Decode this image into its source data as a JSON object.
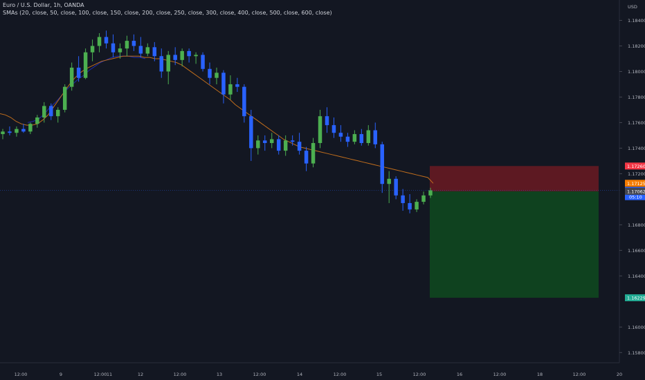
{
  "header": {
    "title": "Euro / U.S. Dollar, 1h, OANDA",
    "indicator": "SMAs (20, close, 50, close, 100, close, 150, close, 200, close, 250, close, 300, close, 400, close, 500, close, 600, close)",
    "currency": "USD"
  },
  "colors": {
    "background": "#131722",
    "up_candle": "#4caf50",
    "down_candle": "#2962ff",
    "sma_fast": "#1e2ba8",
    "sma_slow": "#c26e1c",
    "stop_zone": "#6b1a22",
    "target_zone": "#0f4a1f",
    "stop_badge": "#f23645",
    "sma_badge": "#f57c00",
    "price_badge": "#2962ff",
    "entry_badge": "#434651",
    "target_badge": "#22ab94"
  },
  "y_axis": {
    "ticks": [
      "1.18400",
      "1.18200",
      "1.18000",
      "1.17800",
      "1.17600",
      "1.17400",
      "1.17200",
      "1.16800",
      "1.16600",
      "1.16400",
      "1.16000",
      "1.15800"
    ],
    "badges": {
      "stop": "1.17260",
      "sma": "1.17125",
      "price": "1.17069",
      "countdown": "05:10",
      "entry": "1.17062",
      "target": "1.16229"
    }
  },
  "x_axis": {
    "ticks": [
      "12:00",
      "9",
      "12:00",
      "11",
      "12",
      "12:00",
      "13",
      "12:00",
      "14",
      "12:00",
      "15",
      "12:00",
      "16",
      "12:00",
      "18",
      "12:00",
      "20"
    ]
  },
  "chart_data": {
    "type": "candlestick",
    "ylim": [
      1.1578,
      1.185
    ],
    "position": {
      "type": "short",
      "stop": 1.1726,
      "entry": 1.17062,
      "target": 1.16229
    },
    "sma_fast_approx": [
      1.176,
      1.1761,
      1.1763,
      1.1767,
      1.1772,
      1.1776,
      1.1781,
      1.1786,
      1.179,
      1.1794,
      1.1797,
      1.1801,
      1.1804,
      1.1807,
      1.1809,
      1.1811,
      1.1812,
      1.1812,
      1.1812,
      1.1811,
      1.1811,
      1.181
    ],
    "sma_slow_approx": [
      1.1767,
      1.1766,
      1.1764,
      1.1761,
      1.1759,
      1.1758,
      1.1758,
      1.1759,
      1.1762,
      1.1766,
      1.1772,
      1.1778,
      1.1784,
      1.179,
      1.1795,
      1.1799,
      1.1802,
      1.1804,
      1.1806,
      1.1808,
      1.1809,
      1.181,
      1.1811,
      1.1812,
      1.1812,
      1.1812,
      1.1812,
      1.1811,
      1.1811,
      1.181,
      1.181,
      1.1809,
      1.1808,
      1.1807,
      1.1805,
      1.1802,
      1.1799,
      1.1796,
      1.1793,
      1.179,
      1.1787,
      1.1784,
      1.1781,
      1.1778,
      1.1774,
      1.1771,
      1.1768,
      1.1765,
      1.1762,
      1.1759,
      1.1756,
      1.1753,
      1.175,
      1.1747,
      1.1745,
      1.1743,
      1.1741,
      1.174,
      1.1739,
      1.1738,
      1.1737,
      1.1736,
      1.1735,
      1.1734,
      1.1733,
      1.1732,
      1.1731,
      1.173,
      1.1729,
      1.1728,
      1.1727,
      1.1726,
      1.1725,
      1.1724,
      1.1723,
      1.1722,
      1.1721,
      1.172,
      1.1719,
      1.1718,
      1.1717,
      1.17125
    ],
    "candles": [
      [
        1.1751,
        1.1755,
        1.1747,
        1.1753
      ],
      [
        1.1753,
        1.1757,
        1.175,
        1.1752
      ],
      [
        1.1752,
        1.1757,
        1.1749,
        1.1755
      ],
      [
        1.1755,
        1.1759,
        1.1752,
        1.1753
      ],
      [
        1.1753,
        1.176,
        1.1751,
        1.1759
      ],
      [
        1.1759,
        1.1766,
        1.1756,
        1.1764
      ],
      [
        1.1764,
        1.1776,
        1.176,
        1.1773
      ],
      [
        1.1773,
        1.1775,
        1.1762,
        1.1765
      ],
      [
        1.1765,
        1.1772,
        1.176,
        1.177
      ],
      [
        1.177,
        1.179,
        1.1768,
        1.1788
      ],
      [
        1.1788,
        1.1807,
        1.1785,
        1.1803
      ],
      [
        1.1803,
        1.1812,
        1.1792,
        1.1795
      ],
      [
        1.1795,
        1.1818,
        1.1794,
        1.1815
      ],
      [
        1.1815,
        1.1825,
        1.1808,
        1.182
      ],
      [
        1.182,
        1.183,
        1.1815,
        1.1827
      ],
      [
        1.1827,
        1.1832,
        1.1818,
        1.1822
      ],
      [
        1.1822,
        1.1829,
        1.1811,
        1.1815
      ],
      [
        1.1815,
        1.1822,
        1.181,
        1.1818
      ],
      [
        1.1818,
        1.1828,
        1.1812,
        1.1824
      ],
      [
        1.1824,
        1.1829,
        1.1816,
        1.182
      ],
      [
        1.182,
        1.1827,
        1.1811,
        1.1814
      ],
      [
        1.1814,
        1.1822,
        1.1812,
        1.1819
      ],
      [
        1.1819,
        1.1823,
        1.1808,
        1.1812
      ],
      [
        1.1812,
        1.1818,
        1.1795,
        1.18
      ],
      [
        1.18,
        1.1816,
        1.179,
        1.1813
      ],
      [
        1.1813,
        1.1819,
        1.1805,
        1.1809
      ],
      [
        1.1809,
        1.1818,
        1.1804,
        1.1816
      ],
      [
        1.1816,
        1.1818,
        1.1807,
        1.1812
      ],
      [
        1.1812,
        1.1815,
        1.1806,
        1.1813
      ],
      [
        1.1813,
        1.1815,
        1.18,
        1.1802
      ],
      [
        1.1802,
        1.1807,
        1.179,
        1.1795
      ],
      [
        1.1795,
        1.1803,
        1.179,
        1.1799
      ],
      [
        1.1799,
        1.1801,
        1.1775,
        1.1782
      ],
      [
        1.1782,
        1.1797,
        1.1778,
        1.179
      ],
      [
        1.179,
        1.1795,
        1.1784,
        1.1788
      ],
      [
        1.1788,
        1.179,
        1.176,
        1.1765
      ],
      [
        1.1765,
        1.177,
        1.173,
        1.174
      ],
      [
        1.174,
        1.175,
        1.1735,
        1.1746
      ],
      [
        1.1746,
        1.175,
        1.1738,
        1.1744
      ],
      [
        1.1744,
        1.1752,
        1.174,
        1.1747
      ],
      [
        1.1747,
        1.175,
        1.1735,
        1.1738
      ],
      [
        1.1738,
        1.175,
        1.1734,
        1.1746
      ],
      [
        1.1746,
        1.175,
        1.1742,
        1.1745
      ],
      [
        1.1745,
        1.1752,
        1.1735,
        1.1738
      ],
      [
        1.1738,
        1.1741,
        1.1722,
        1.1728
      ],
      [
        1.1728,
        1.1748,
        1.1725,
        1.1744
      ],
      [
        1.1744,
        1.177,
        1.174,
        1.1765
      ],
      [
        1.1765,
        1.1772,
        1.1752,
        1.1758
      ],
      [
        1.1758,
        1.1764,
        1.1748,
        1.1752
      ],
      [
        1.1752,
        1.1758,
        1.1745,
        1.1749
      ],
      [
        1.1749,
        1.1752,
        1.1741,
        1.1745
      ],
      [
        1.1745,
        1.1754,
        1.1743,
        1.1751
      ],
      [
        1.1751,
        1.1755,
        1.1742,
        1.1744
      ],
      [
        1.1744,
        1.1758,
        1.1742,
        1.1754
      ],
      [
        1.1754,
        1.176,
        1.174,
        1.1743
      ],
      [
        1.1743,
        1.1745,
        1.1705,
        1.1712
      ],
      [
        1.1712,
        1.1722,
        1.1697,
        1.1716
      ],
      [
        1.1716,
        1.1718,
        1.17,
        1.1703
      ],
      [
        1.1703,
        1.1708,
        1.1691,
        1.1697
      ],
      [
        1.1697,
        1.1704,
        1.1689,
        1.1692
      ],
      [
        1.1692,
        1.17,
        1.169,
        1.1698
      ],
      [
        1.1698,
        1.1706,
        1.1696,
        1.1703
      ],
      [
        1.1703,
        1.1709,
        1.1701,
        1.1707
      ]
    ]
  }
}
